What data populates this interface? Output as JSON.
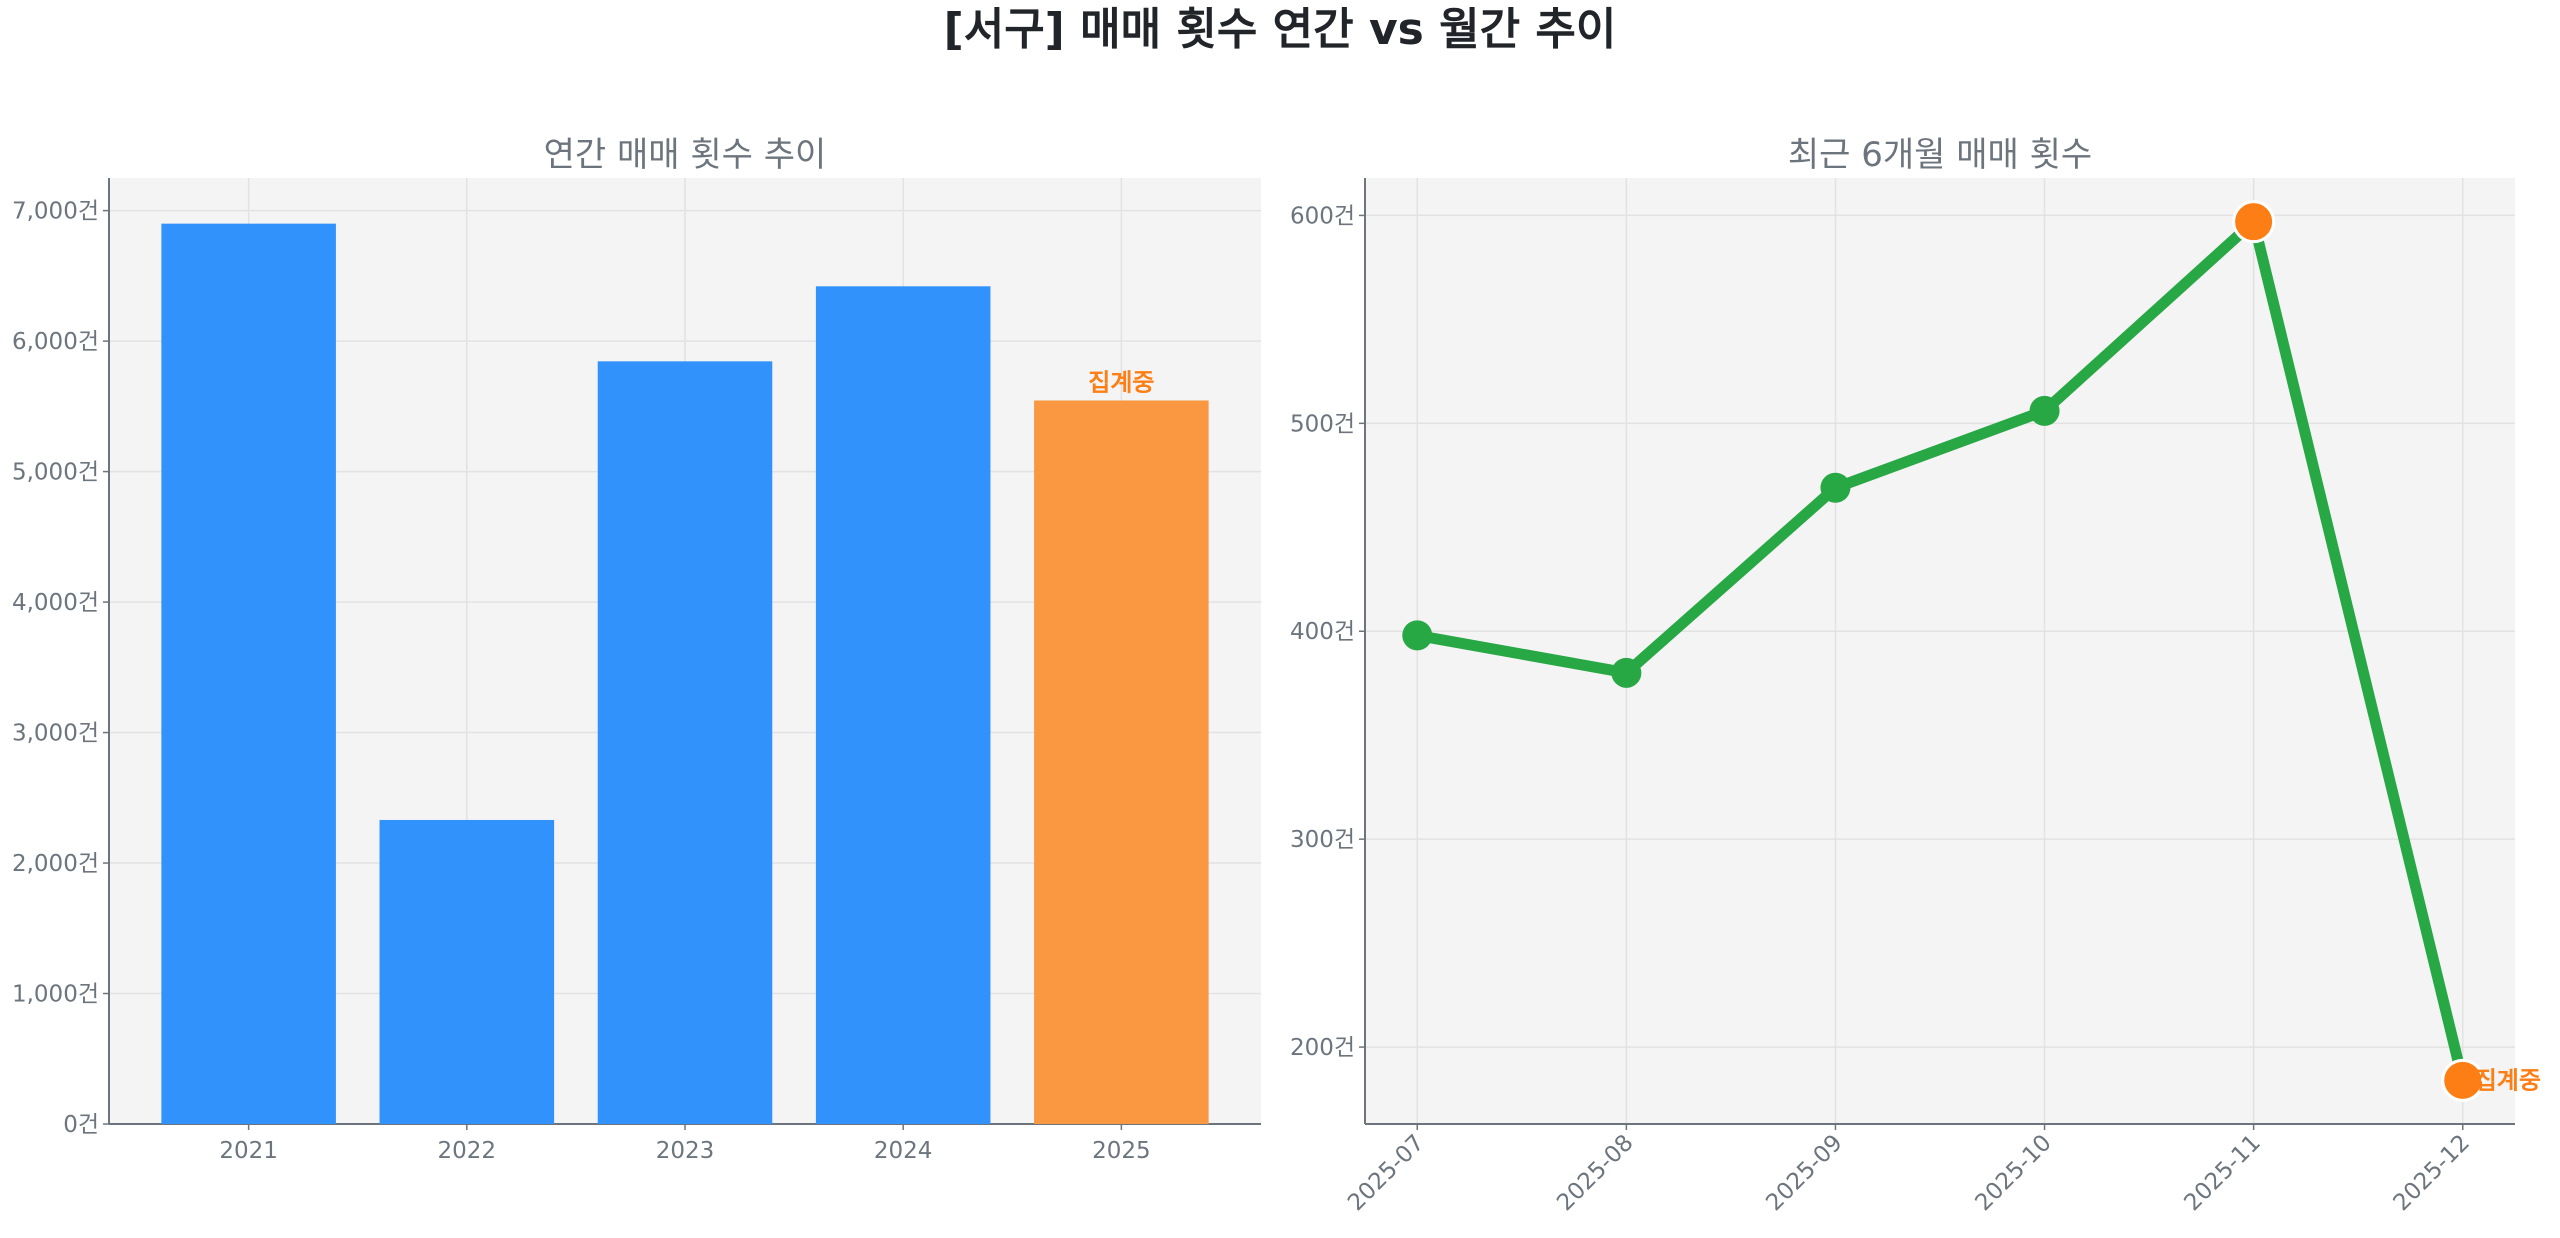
{
  "figure": {
    "title": "[서구] 매매 횟수 연간 vs 월간 추이"
  },
  "colors": {
    "bar": "#3192FB",
    "bar_partial": "#F99841",
    "line": "#28A745",
    "marker_highlight": "#FD7E14",
    "axes_bg": "#F4F4F4",
    "text": "#6c757d"
  },
  "chart_data": [
    {
      "type": "bar",
      "title": "연간 매매 횟수 추이",
      "categories": [
        "2021",
        "2022",
        "2023",
        "2024",
        "2025"
      ],
      "values": [
        6900,
        2330,
        5845,
        6420,
        5545
      ],
      "partial": [
        false,
        false,
        false,
        false,
        true
      ],
      "annotation": "집계중",
      "ylim": [
        0,
        7250
      ],
      "yticks": [
        0,
        1000,
        2000,
        3000,
        4000,
        5000,
        6000,
        7000
      ],
      "ytick_labels": [
        "0건",
        "1,000건",
        "2,000건",
        "3,000건",
        "4,000건",
        "5,000건",
        "6,000건",
        "7,000건"
      ],
      "grid": true
    },
    {
      "type": "line",
      "title": "최근 6개월 매매 횟수",
      "categories": [
        "2025-07",
        "2025-08",
        "2025-09",
        "2025-10",
        "2025-11",
        "2025-12"
      ],
      "values": [
        398,
        380,
        469,
        506,
        597,
        184
      ],
      "highlight": [
        false,
        false,
        false,
        false,
        true,
        true
      ],
      "annotation": "집계중",
      "ylim": [
        163,
        618
      ],
      "yticks": [
        200,
        300,
        400,
        500,
        600
      ],
      "ytick_labels": [
        "200건",
        "300건",
        "400건",
        "500건",
        "600건"
      ],
      "grid": true
    }
  ]
}
